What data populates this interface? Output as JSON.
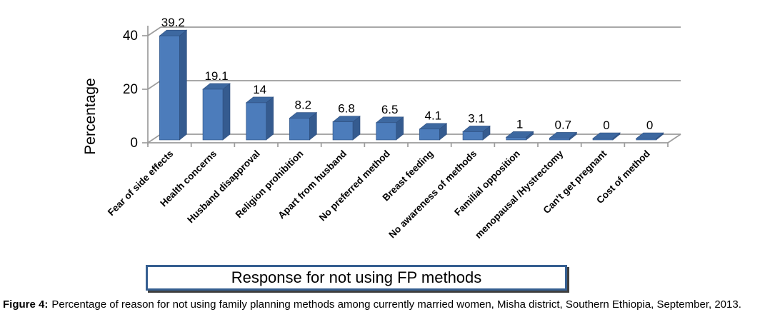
{
  "chart_data": {
    "type": "bar",
    "style": "3d-column",
    "title": "Response for not using FP methods",
    "categories": [
      "Fear of side effects",
      "Health concerns",
      "Husband disapproval",
      "Religion prohibition",
      "Apart from husband",
      "No preferred method",
      "Breast feeding",
      "No awareness of methods",
      "Familial opposition",
      "menopausal /Hystrectomy",
      "Can't get pregnant",
      "Cost of method"
    ],
    "values": [
      39.2,
      19.1,
      14,
      8.2,
      6.8,
      6.5,
      4.1,
      3.1,
      1,
      0.7,
      0,
      0
    ],
    "value_labels": [
      "39.2",
      "19.1",
      "14",
      "8.2",
      "6.8",
      "6.5",
      "4.1",
      "3.1",
      "1",
      "0.7",
      "0",
      "0"
    ],
    "xlabel": "",
    "ylabel": "Percentage",
    "yticks": [
      0,
      20,
      40
    ],
    "ylim": [
      0,
      40
    ],
    "grid": true,
    "legend": false,
    "colors": {
      "bar_front": "#4C7CBB",
      "bar_top": "#3D68A0",
      "bar_side": "#355B8F",
      "bar_edge": "#2E4E7E",
      "grid": "#9C9C9C",
      "axis": "#9C9C9C",
      "label": "#000000"
    }
  },
  "title_box": {
    "text": "Response for not using FP methods",
    "border_color": "#365F91"
  },
  "caption": {
    "label": "Figure 4:",
    "text": "Percentage of reason for not using family planning methods among currently married women, Misha district, Southern Ethiopia, September, 2013."
  }
}
